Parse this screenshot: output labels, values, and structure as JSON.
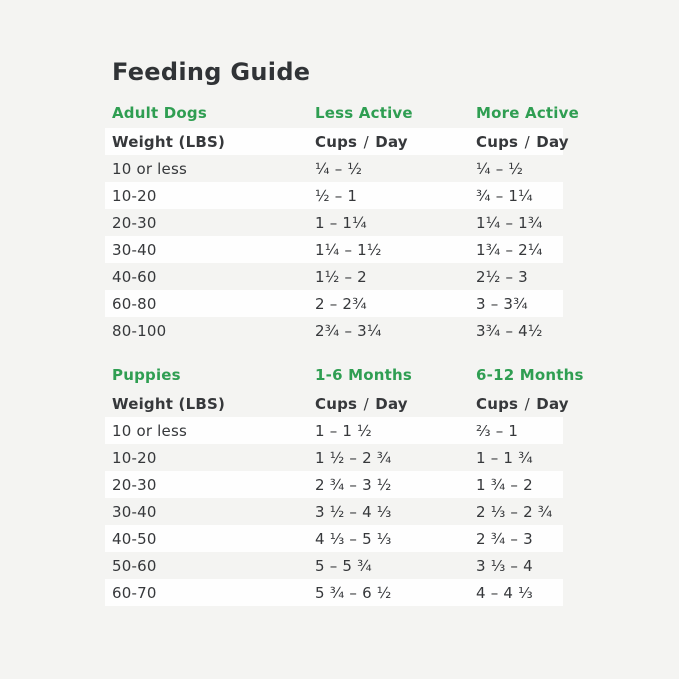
{
  "page": {
    "title": "Feeding Guide"
  },
  "colors": {
    "page_bg": "#f4f4f2",
    "row_stripe": "#fefefe",
    "accent_green": "#2f9e52",
    "text_dark": "#36383b",
    "title_dark": "#303336"
  },
  "tables": [
    {
      "header": {
        "title": "Adult Dogs",
        "col2": "Less Active",
        "col3": "More Active"
      },
      "subheader": {
        "weight_label": "Weight (LBS)",
        "cups_label": "Cups",
        "slash": "/",
        "day_label": "Day",
        "highlight": true
      },
      "rows": [
        {
          "weight": "10 or less",
          "col2": "¼ – ½",
          "col3": "¼ – ½",
          "highlight": false
        },
        {
          "weight": "10-20",
          "col2": "½ – 1",
          "col3": "¾ – 1¼",
          "highlight": true
        },
        {
          "weight": "20-30",
          "col2": "1 – 1¼",
          "col3": "1¼ – 1¾",
          "highlight": false
        },
        {
          "weight": "30-40",
          "col2": "1¼ – 1½",
          "col3": "1¾ – 2¼",
          "highlight": true
        },
        {
          "weight": "40-60",
          "col2": "1½ – 2",
          "col3": "2½ – 3",
          "highlight": false
        },
        {
          "weight": "60-80",
          "col2": "2 – 2¾",
          "col3": "3 – 3¾",
          "highlight": true
        },
        {
          "weight": "80-100",
          "col2": "2¾ – 3¼",
          "col3": "3¾ – 4½",
          "highlight": false
        }
      ]
    },
    {
      "header": {
        "title": "Puppies",
        "col2": "1-6 Months",
        "col3": "6-12 Months"
      },
      "subheader": {
        "weight_label": "Weight (LBS)",
        "cups_label": "Cups",
        "slash": "/",
        "day_label": "Day",
        "highlight": false
      },
      "rows": [
        {
          "weight": "10 or less",
          "col2": "1 – 1 ½",
          "col3": "⅔ – 1",
          "highlight": true
        },
        {
          "weight": "10-20",
          "col2": "1 ½ – 2 ¾",
          "col3": "1 – 1 ¾",
          "highlight": false
        },
        {
          "weight": "20-30",
          "col2": "2 ¾ – 3 ½",
          "col3": "1 ¾ – 2",
          "highlight": true
        },
        {
          "weight": "30-40",
          "col2": "3 ½ – 4 ⅓",
          "col3": "2 ⅓ – 2 ¾",
          "highlight": false
        },
        {
          "weight": "40-50",
          "col2": "4 ⅓ – 5 ⅓",
          "col3": "2 ¾ – 3",
          "highlight": true
        },
        {
          "weight": "50-60",
          "col2": "5 – 5 ¾",
          "col3": "3 ⅓ – 4",
          "highlight": false
        },
        {
          "weight": "60-70",
          "col2": "5 ¾ – 6 ½",
          "col3": "4 – 4 ⅓",
          "highlight": true
        }
      ]
    }
  ]
}
